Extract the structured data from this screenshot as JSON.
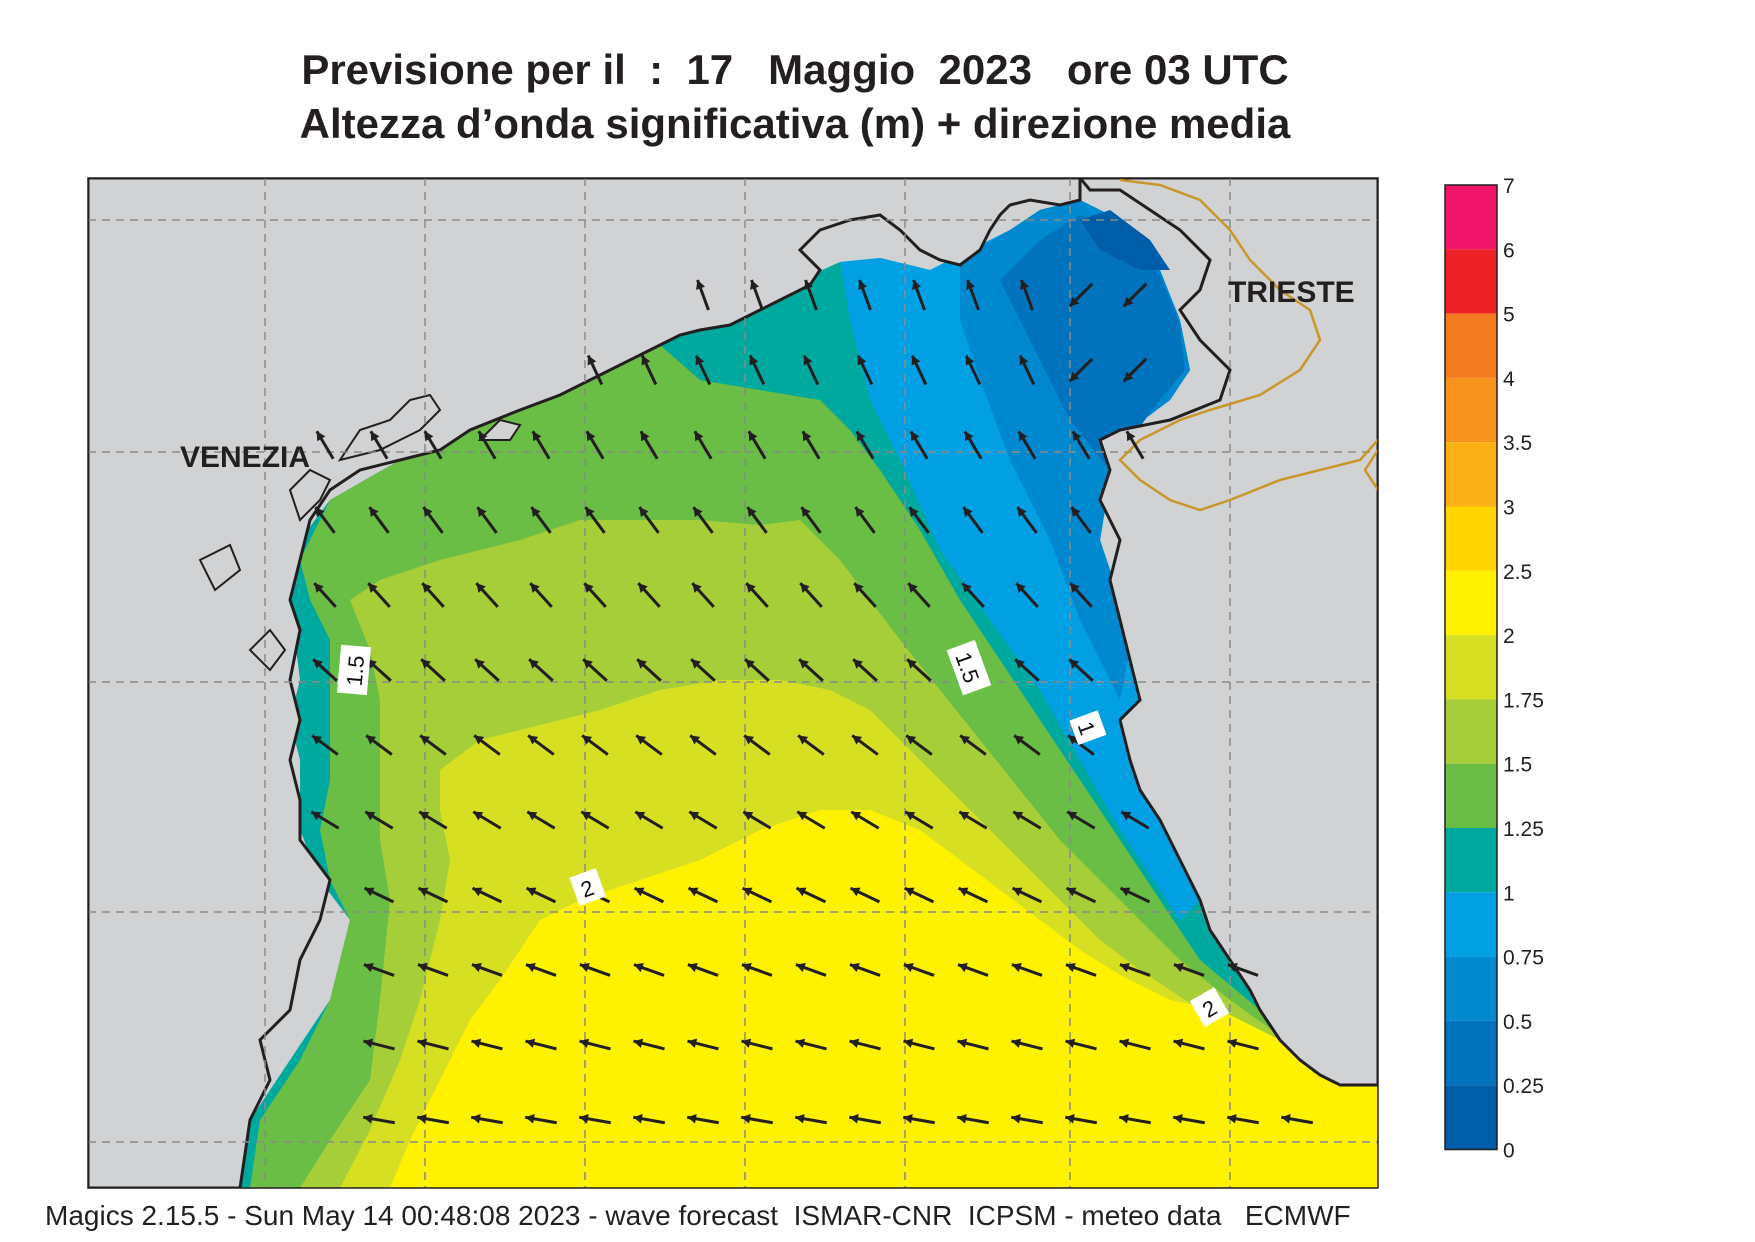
{
  "header": {
    "title_line1": "Previsione per il  :  17   Maggio  2023   ore 03 UTC",
    "title_line2": "Altezza d’onda significativa (m) + direzione media"
  },
  "map": {
    "cities": [
      {
        "name": "VENEZIA"
      },
      {
        "name": "TRIESTE"
      }
    ],
    "contour_labels": [
      "1.5",
      "1.5",
      "1",
      "2",
      "2"
    ],
    "colors": {
      "land": "#d1d2d4",
      "coast": "#231f20",
      "border": "#c9962a",
      "grid": "#8a8a8a"
    }
  },
  "legend": {
    "labels": [
      "7",
      "6",
      "5",
      "4",
      "3.5",
      "3",
      "2.5",
      "2",
      "1.75",
      "1.5",
      "1.25",
      "1",
      "0.75",
      "0.5",
      "0.25",
      "0"
    ],
    "colors": [
      "#f01569",
      "#ec2227",
      "#f47b20",
      "#f7941d",
      "#fbb116",
      "#ffd400",
      "#fff200",
      "#d7df23",
      "#a6ce39",
      "#6abd45",
      "#00a99d",
      "#00a0e2",
      "#0089cf",
      "#0073bc",
      "#005ea8"
    ]
  },
  "footer": {
    "text": "Magics 2.15.5 - Sun May 14 00:48:08 2023 - wave forecast  ISMAR-CNR  ICPSM - meteo data   ECMWF"
  }
}
